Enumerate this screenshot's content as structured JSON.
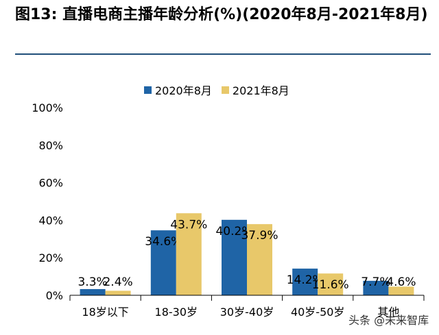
{
  "title": "图13: 直播电商主播年龄分析(%)(2020年8月-2021年8月)",
  "watermark": "头条 @未来智库",
  "colors": {
    "series_2020": "#1f64a6",
    "series_2021": "#e8c86a",
    "title_rule": "#1f4e79"
  },
  "chart_data": {
    "type": "bar",
    "categories": [
      "18岁以下",
      "18-30岁",
      "30岁-40岁",
      "40岁-50岁",
      "其他"
    ],
    "series": [
      {
        "name": "2020年8月",
        "values": [
          3.3,
          34.6,
          40.2,
          14.2,
          7.7
        ],
        "labels": [
          "3.3%",
          "34.6%",
          "40.2%",
          "14.2%",
          "7.7%"
        ]
      },
      {
        "name": "2021年8月",
        "values": [
          2.4,
          43.7,
          37.9,
          11.6,
          4.6
        ],
        "labels": [
          "2.4%",
          "43.7%",
          "37.9%",
          "11.6%",
          "4.6%"
        ]
      }
    ],
    "ylim": [
      0,
      100
    ],
    "yticks": [
      "0%",
      "20%",
      "40%",
      "60%",
      "80%",
      "100%"
    ],
    "ytick_values": [
      0,
      20,
      40,
      60,
      80,
      100
    ],
    "grid": false,
    "legend_position": "top-center"
  }
}
